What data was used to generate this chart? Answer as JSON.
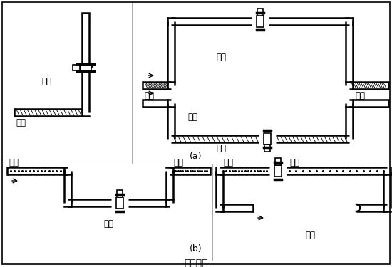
{
  "bg_color": "#ffffff",
  "line_color": "#000000",
  "border_color": "#000000",
  "figsize": [
    5.5,
    3.75
  ],
  "dpi": 100,
  "texts": {
    "zhengque": "正确",
    "cuowu": "错误",
    "yeti": "液体",
    "qipao": "气泡",
    "title": "图（四）",
    "label_a": "(a)",
    "label_b": "(b)"
  },
  "font_size": 8.5
}
